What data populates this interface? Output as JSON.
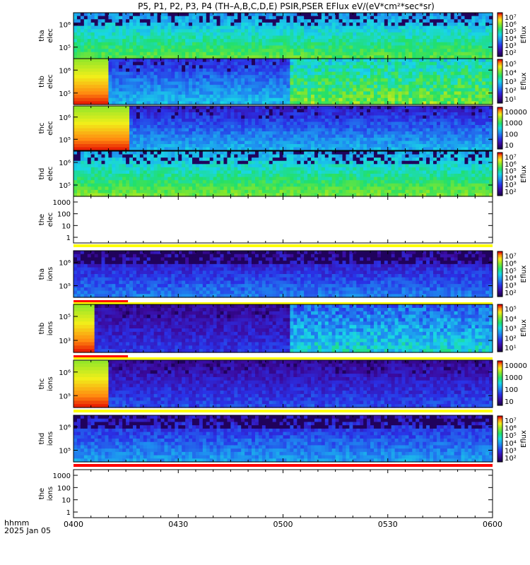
{
  "chart_data": {
    "type": "heatmap",
    "title": "P5, P1, P2, P3, P4 (TH–A,B,C,D,E) PSIR,PSER EFlux eV/(eV*cm²*sec*sr)",
    "x_ticks": [
      "0400",
      "0430",
      "0500",
      "0530",
      "0600"
    ],
    "x_label_line1": "hhmm",
    "x_label_line2": "2025 Jan 05",
    "y_scale": "log",
    "panels": [
      {
        "name": "tha_elec",
        "label": [
          "tha",
          "elec"
        ],
        "y_ticks": [
          "10⁶",
          "10⁵"
        ],
        "has_data": true,
        "colorbar_title": "Eflux",
        "colorbar_ticks": [
          "10⁷",
          "10⁶",
          "10⁵",
          "10⁴",
          "10³",
          "10²"
        ]
      },
      {
        "name": "thb_elec",
        "label": [
          "thb",
          "elec"
        ],
        "y_ticks": [
          "10⁶",
          "10⁵"
        ],
        "has_data": true,
        "colorbar_title": "Eflux",
        "colorbar_ticks": [
          "10⁵",
          "10⁴",
          "10³",
          "10²",
          "10¹"
        ]
      },
      {
        "name": "thc_elec",
        "label": [
          "thc",
          "elec"
        ],
        "y_ticks": [
          "10⁶",
          "10⁵"
        ],
        "has_data": true,
        "colorbar_title": "",
        "colorbar_ticks": [
          "10000",
          "1000",
          "100",
          "10"
        ]
      },
      {
        "name": "thd_elec",
        "label": [
          "thd",
          "elec"
        ],
        "y_ticks": [
          "10⁶",
          "10⁵"
        ],
        "has_data": true,
        "colorbar_title": "Eflux",
        "colorbar_ticks": [
          "10⁷",
          "10⁶",
          "10⁵",
          "10⁴",
          "10³",
          "10²"
        ]
      },
      {
        "name": "the_elec",
        "label": [
          "the",
          "elec"
        ],
        "y_ticks": [
          "1000",
          "100",
          "10",
          "1"
        ],
        "has_data": false,
        "colorbar_title": "",
        "colorbar_ticks": []
      },
      {
        "name": "tha_ions",
        "label": [
          "tha",
          "ions"
        ],
        "y_ticks": [
          "10⁶",
          "10⁵"
        ],
        "has_data": true,
        "colorbar_title": "Eflux",
        "colorbar_ticks": [
          "10⁷",
          "10⁶",
          "10⁵",
          "10⁴",
          "10³",
          "10²"
        ]
      },
      {
        "name": "thb_ions",
        "label": [
          "thb",
          "ions"
        ],
        "y_ticks": [
          "10⁵",
          "10³"
        ],
        "has_data": true,
        "colorbar_title": "Eflux",
        "colorbar_ticks": [
          "10⁵",
          "10⁴",
          "10³",
          "10²",
          "10¹"
        ]
      },
      {
        "name": "thc_ions",
        "label": [
          "thc",
          "ions"
        ],
        "y_ticks": [
          "10⁶",
          "10⁵"
        ],
        "has_data": true,
        "colorbar_title": "",
        "colorbar_ticks": [
          "10000",
          "1000",
          "100",
          "10"
        ]
      },
      {
        "name": "thd_ions",
        "label": [
          "thd",
          "ions"
        ],
        "y_ticks": [
          "10⁶",
          "10⁵"
        ],
        "has_data": true,
        "colorbar_title": "Eflux",
        "colorbar_ticks": [
          "10⁷",
          "10⁶",
          "10⁵",
          "10⁴",
          "10³",
          "10²"
        ]
      },
      {
        "name": "the_ions",
        "label": [
          "the",
          "ions"
        ],
        "y_ticks": [
          "1000",
          "100",
          "10",
          "1"
        ],
        "has_data": false,
        "colorbar_title": "",
        "colorbar_ticks": []
      }
    ]
  },
  "colors": {
    "data_bar_yellow": "#ffff00",
    "data_bar_red": "#ff0000"
  }
}
